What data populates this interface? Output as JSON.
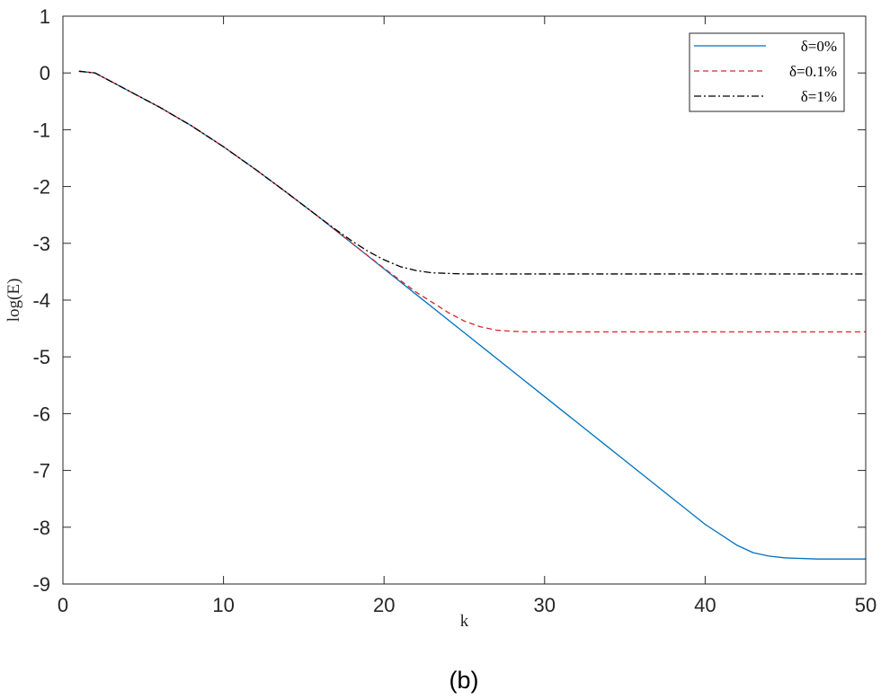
{
  "chart_data": {
    "type": "line",
    "xlabel": "k",
    "ylabel": "log(E)",
    "xlim": [
      0,
      50
    ],
    "ylim": [
      -9,
      1
    ],
    "xticks": [
      0,
      10,
      20,
      30,
      40,
      50
    ],
    "yticks": [
      1,
      0,
      -1,
      -2,
      -3,
      -4,
      -5,
      -6,
      -7,
      -8,
      -9
    ],
    "grid": false,
    "legend_position": "top-right",
    "caption": "(b)",
    "series": [
      {
        "name": "δ=0%",
        "color": "#0072BD",
        "dash": "solid",
        "x": [
          1,
          2,
          4,
          6,
          8,
          10,
          12,
          14,
          16,
          18,
          20,
          22,
          24,
          26,
          28,
          30,
          32,
          34,
          36,
          38,
          40,
          42,
          43,
          44,
          45,
          46,
          47,
          48,
          50
        ],
        "y": [
          0.03,
          0.0,
          -0.3,
          -0.6,
          -0.93,
          -1.3,
          -1.7,
          -2.12,
          -2.55,
          -3.0,
          -3.45,
          -3.9,
          -4.35,
          -4.8,
          -5.25,
          -5.7,
          -6.15,
          -6.6,
          -7.05,
          -7.5,
          -7.95,
          -8.32,
          -8.45,
          -8.51,
          -8.54,
          -8.55,
          -8.56,
          -8.56,
          -8.56
        ]
      },
      {
        "name": "δ=0.1%",
        "color": "#D62728",
        "dash": "6 4",
        "x": [
          1,
          2,
          4,
          6,
          8,
          10,
          12,
          14,
          16,
          18,
          20,
          22,
          24,
          25,
          26,
          27,
          28,
          29,
          30,
          32,
          35,
          40,
          45,
          50
        ],
        "y": [
          0.03,
          0.0,
          -0.3,
          -0.6,
          -0.93,
          -1.3,
          -1.7,
          -2.12,
          -2.55,
          -3.0,
          -3.44,
          -3.86,
          -4.22,
          -4.37,
          -4.47,
          -4.53,
          -4.55,
          -4.56,
          -4.56,
          -4.56,
          -4.56,
          -4.56,
          -4.56,
          -4.56
        ]
      },
      {
        "name": "δ=1%",
        "color": "#000000",
        "dash": "8 3 2 3",
        "x": [
          1,
          2,
          4,
          6,
          8,
          10,
          12,
          14,
          16,
          17,
          18,
          19,
          20,
          21,
          22,
          23,
          24,
          25,
          26,
          28,
          30,
          35,
          40,
          45,
          50
        ],
        "y": [
          0.03,
          0.0,
          -0.3,
          -0.6,
          -0.93,
          -1.3,
          -1.7,
          -2.12,
          -2.55,
          -2.76,
          -2.96,
          -3.14,
          -3.29,
          -3.41,
          -3.48,
          -3.52,
          -3.53,
          -3.54,
          -3.54,
          -3.54,
          -3.54,
          -3.54,
          -3.54,
          -3.54,
          -3.54
        ]
      }
    ]
  }
}
